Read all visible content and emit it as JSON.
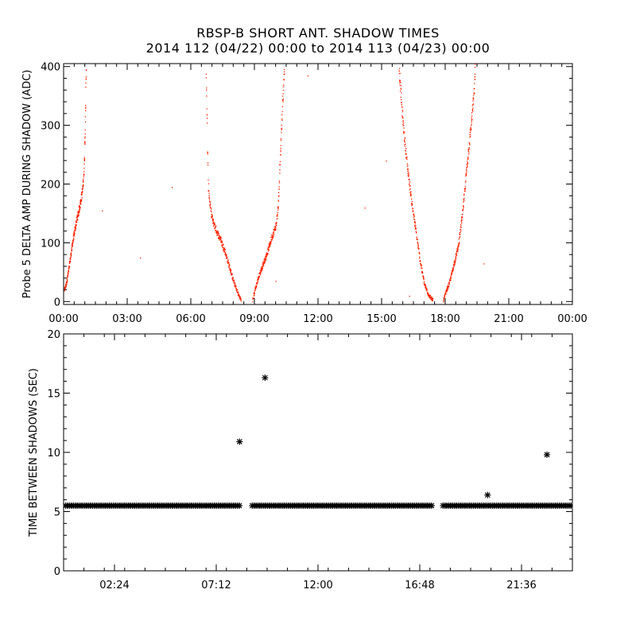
{
  "title_line1": "RBSP-B SHORT ANT. SHADOW TIMES",
  "title_line2": "2014 112 (04/22) 00:00 to 2014 113 (04/23) 00:00",
  "chart_data": [
    {
      "type": "scatter",
      "ylabel": "Probe 5 DELTA AMP DURING SHADOW (ADC)",
      "xlim": [
        0,
        24
      ],
      "ylim": [
        -5,
        405
      ],
      "x_unit": "hours",
      "x_tick_labels": [
        "00:00",
        "03:00",
        "06:00",
        "09:00",
        "12:00",
        "15:00",
        "18:00",
        "21:00",
        "00:00"
      ],
      "y_ticks": [
        0,
        100,
        200,
        300,
        400
      ],
      "color": "#ff2200",
      "series": [
        {
          "x": [
            0.02,
            0.1,
            0.2,
            0.3,
            0.4,
            0.5,
            0.6,
            0.7,
            0.78,
            0.85,
            0.9,
            0.95,
            1.0,
            1.02,
            1.05
          ],
          "y": [
            20,
            30,
            50,
            75,
            100,
            120,
            140,
            155,
            170,
            185,
            200,
            230,
            300,
            350,
            400
          ]
        },
        {
          "x": [
            6.7,
            6.75,
            6.8,
            6.9,
            7.0,
            7.2,
            7.4,
            7.6,
            7.8,
            8.0,
            8.2,
            8.35
          ],
          "y": [
            400,
            300,
            200,
            160,
            140,
            120,
            105,
            85,
            60,
            35,
            15,
            3
          ]
        },
        {
          "x": [
            8.9,
            9.0,
            9.2,
            9.4,
            9.6,
            9.8,
            10.0,
            10.1,
            10.15,
            10.2,
            10.3,
            10.4
          ],
          "y": [
            3,
            20,
            45,
            65,
            85,
            110,
            130,
            160,
            200,
            250,
            330,
            400
          ]
        },
        {
          "x": [
            15.8,
            15.9,
            16.0,
            16.2,
            16.4,
            16.6,
            16.8,
            17.0,
            17.2,
            17.4
          ],
          "y": [
            400,
            350,
            300,
            230,
            170,
            120,
            70,
            30,
            12,
            3
          ]
        },
        {
          "x": [
            17.9,
            18.0,
            18.2,
            18.4,
            18.6,
            18.8,
            19.0,
            19.2,
            19.35,
            19.4
          ],
          "y": [
            3,
            15,
            35,
            65,
            95,
            150,
            230,
            300,
            360,
            400
          ]
        }
      ],
      "stray_points": {
        "x": [
          1.8,
          3.6,
          5.1,
          10.0,
          11.5,
          14.2,
          15.2,
          16.3,
          19.8
        ],
        "y": [
          155,
          75,
          195,
          35,
          385,
          160,
          240,
          10,
          65
        ]
      }
    },
    {
      "type": "scatter",
      "ylabel": "TIME BETWEEN SHADOWS (SEC)",
      "xlim": [
        0,
        24
      ],
      "ylim": [
        0,
        20
      ],
      "x_unit": "hours",
      "x_tick_values": [
        2.4,
        7.2,
        12.0,
        16.8,
        21.6
      ],
      "x_tick_labels": [
        "02:24",
        "07:12",
        "12:00",
        "16:48",
        "21:36"
      ],
      "y_ticks": [
        0,
        5,
        10,
        15,
        20
      ],
      "marker": "*",
      "baseline_value": 5.5,
      "baseline_segments": [
        [
          0.1,
          8.35
        ],
        [
          8.9,
          17.4
        ],
        [
          17.9,
          24.0
        ]
      ],
      "outliers": {
        "x": [
          8.3,
          9.5,
          20.0,
          22.8
        ],
        "y": [
          10.9,
          16.3,
          6.4,
          9.8
        ]
      }
    }
  ]
}
